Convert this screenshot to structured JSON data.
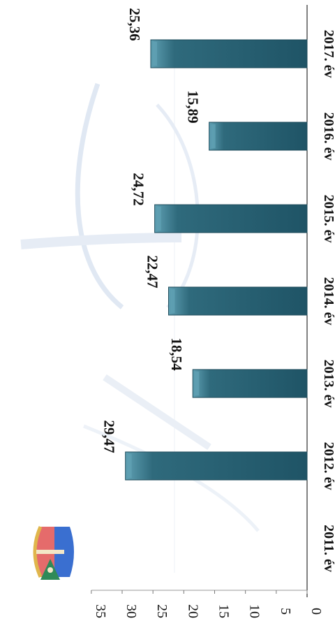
{
  "chart_data": {
    "type": "bar",
    "orientation": "vertical bars, image rotated 90° clockwise",
    "categories": [
      "2011. év",
      "2012. év",
      "2013. év",
      "2014. év",
      "2015. év",
      "2016. év",
      "2017. év"
    ],
    "values": [
      null,
      29.47,
      18.54,
      22.47,
      24.72,
      15.89,
      25.36
    ],
    "data_labels": [
      "",
      "29,47",
      "18,54",
      "22,47",
      "24,72",
      "15,89",
      "25,36"
    ],
    "ylim": [
      0,
      35
    ],
    "yticks": [
      "0",
      "5",
      "10",
      "15",
      "20",
      "25",
      "30",
      "35"
    ],
    "title": "",
    "xlabel": "",
    "ylabel": "",
    "grid": false,
    "legend": "none",
    "colors": {
      "bar": "#2f6a7c",
      "bar_edge": "#1c4a59",
      "bar_highlight": "#5fa0b3",
      "axis": "#000000",
      "watermark": "#c7d6ea"
    },
    "logo_icon": "coat-of-arms-icon",
    "watermark_icon": "faded-watermark-icon"
  }
}
